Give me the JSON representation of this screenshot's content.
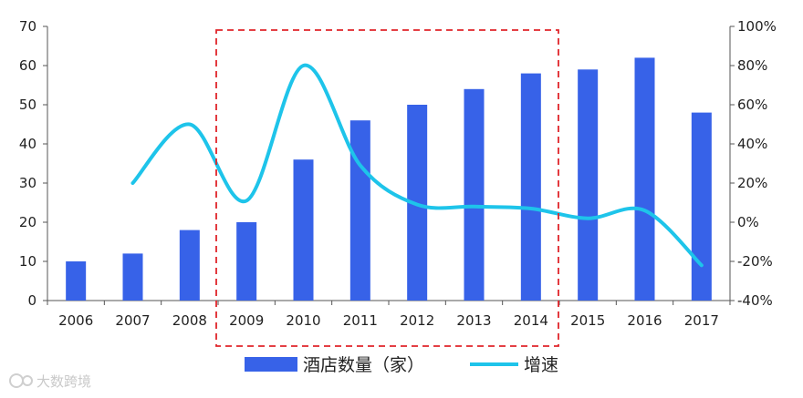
{
  "chart_data": {
    "type": "bar",
    "categories": [
      "2006",
      "2007",
      "2008",
      "2009",
      "2010",
      "2011",
      "2012",
      "2013",
      "2014",
      "2015",
      "2016",
      "2017"
    ],
    "series": [
      {
        "name": "酒店数量（家）",
        "type": "bar",
        "axis": "left",
        "values": [
          10,
          12,
          18,
          20,
          36,
          46,
          50,
          54,
          58,
          59,
          62,
          48
        ],
        "color": "#3762e8"
      },
      {
        "name": "增速",
        "type": "line",
        "axis": "right",
        "values": [
          null,
          20,
          50,
          11,
          80,
          29,
          9,
          8,
          7,
          2,
          6,
          -22
        ],
        "color": "#1ec4ea"
      }
    ],
    "y_left": {
      "min": 0,
      "max": 70,
      "ticks": [
        "0",
        "10",
        "20",
        "30",
        "40",
        "50",
        "60",
        "70"
      ]
    },
    "y_right": {
      "min": -40,
      "max": 100,
      "ticks": [
        "-40%",
        "-20%",
        "0%",
        "20%",
        "40%",
        "60%",
        "80%",
        "100%"
      ]
    },
    "highlight_range": [
      "2009",
      "2014"
    ],
    "highlight_color": "#e0242a",
    "legend_placement": "bottom"
  },
  "watermark": {
    "text": "大数跨境"
  }
}
